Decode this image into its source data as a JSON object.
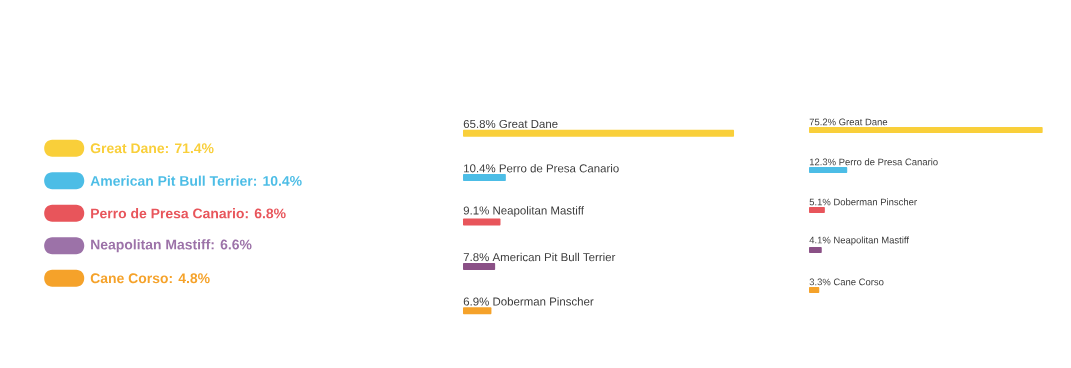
{
  "chart_data": [
    {
      "type": "other",
      "categories": [
        "Great Dane: 71.4%",
        "American Pit Bull Terrier: 10.4%",
        "Perro de Presa Canario: 6.8%",
        "Neapolitan Mastiff: 6.6%",
        "Cane Corso: 4.8%"
      ],
      "colors": [
        "#f9cf3a",
        "#4cbde6",
        "#e8555b",
        "#9c72a8",
        "#f5a22a"
      ]
    },
    {
      "type": "bar",
      "orientation": "horizontal",
      "categories": [
        "Great Dane",
        "Perro de Presa Canario",
        "Neapolitan Mastiff",
        "American Pit Bull Terrier",
        "Doberman Pinscher"
      ],
      "values": [
        65.8,
        10.4,
        9.1,
        7.8,
        6.9
      ],
      "value_labels": [
        "65.8%",
        "10.4%",
        "9.1%",
        "7.8%",
        "6.9%"
      ],
      "colors": [
        "#f9cf3a",
        "#4cbde6",
        "#e8555b",
        "#8a5086",
        "#f5a22a"
      ]
    },
    {
      "type": "bar",
      "orientation": "horizontal",
      "categories": [
        "Great Dane",
        "Perro de Presa Canario",
        "Doberman Pinscher",
        "Neapolitan Mastiff",
        "Cane Corso"
      ],
      "values": [
        75.2,
        12.3,
        5.1,
        4.1,
        3.3
      ],
      "value_labels": [
        "75.2%",
        "12.3%",
        "5.1%",
        "4.1%",
        "3.3%"
      ],
      "colors": [
        "#f9cf3a",
        "#4cbde6",
        "#e8555b",
        "#8a5086",
        "#f5a22a"
      ]
    }
  ]
}
